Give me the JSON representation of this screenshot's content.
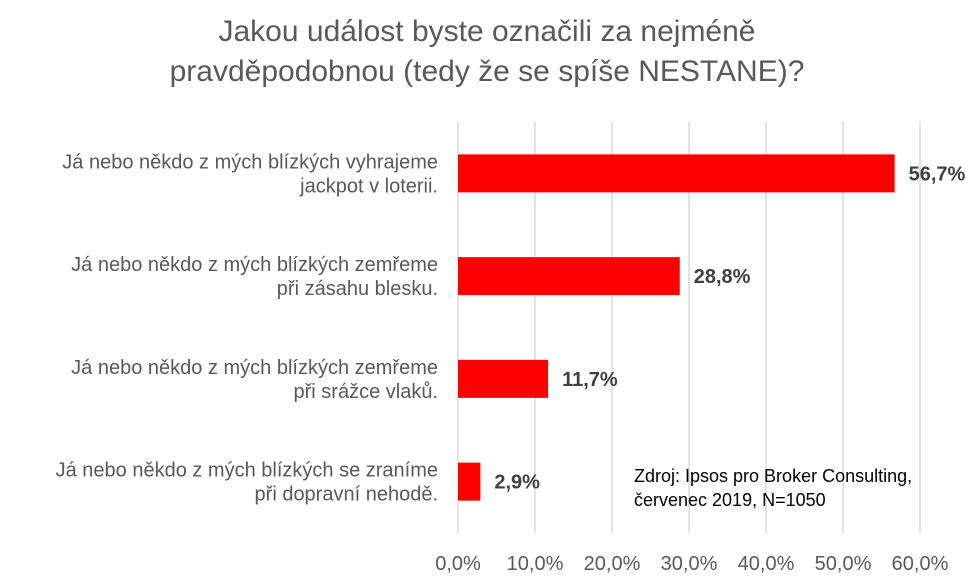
{
  "title_line1": "Jakou událost byste označili za nejméně",
  "title_line2": "pravděpodobnou (tedy že se spíše NESTANE)?",
  "source_line1": "Zdroj: Ipsos pro Broker Consulting,",
  "source_line2": "červenec 2019, N=1050",
  "chart_data": {
    "type": "bar",
    "orientation": "horizontal",
    "categories": [
      [
        "Já nebo někdo z mých blízkých vyhrajeme",
        "jackpot v loterii."
      ],
      [
        "Já nebo někdo z mých blízkých zemřeme",
        "při zásahu blesku."
      ],
      [
        "Já nebo někdo z mých blízkých zemřeme",
        "při srážce vlaků."
      ],
      [
        "Já nebo někdo z mých blízkých se zraníme",
        "při dopravní nehodě."
      ]
    ],
    "values": [
      56.7,
      28.8,
      11.7,
      2.9
    ],
    "value_labels": [
      "56,7%",
      "28,8%",
      "11,7%",
      "2,9%"
    ],
    "xlim": [
      0,
      60
    ],
    "xticks": [
      0,
      10,
      20,
      30,
      40,
      50,
      60
    ],
    "xtick_labels": [
      "0,0%",
      "10,0%",
      "20,0%",
      "30,0%",
      "40,0%",
      "50,0%",
      "60,0%"
    ],
    "grid": true,
    "bar_color": "#ff0000",
    "grid_color": "#d9d9d9"
  }
}
